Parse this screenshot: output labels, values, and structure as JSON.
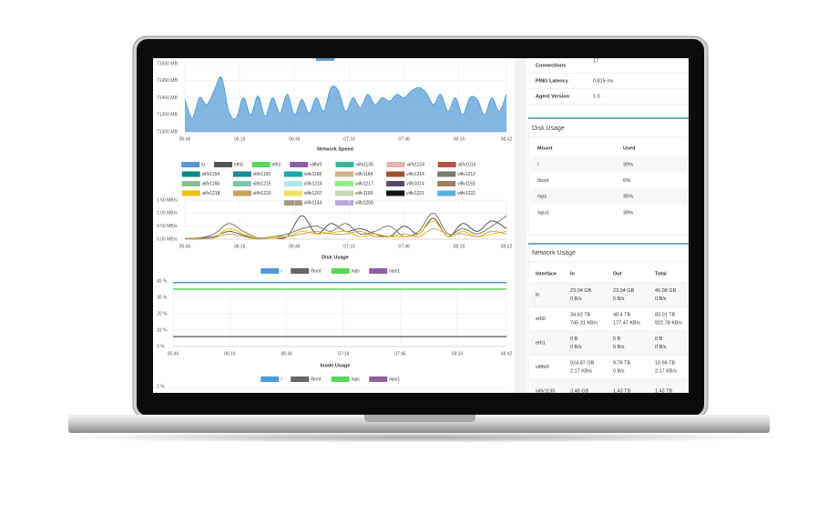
{
  "chart_data": [
    {
      "type": "area",
      "x": [
        346,
        350,
        354,
        358,
        362,
        366,
        370,
        374,
        378,
        382,
        386,
        390,
        394,
        398,
        402,
        406,
        410,
        414,
        418,
        422,
        426,
        430,
        434,
        438,
        442,
        446,
        450,
        454,
        458,
        462,
        466,
        470,
        474,
        478,
        482,
        486,
        490,
        494,
        498,
        502,
        506,
        510,
        514,
        518,
        522
      ],
      "xlim": [
        346,
        522
      ],
      "xticks": [
        {
          "value": 346,
          "label": "05:46"
        },
        {
          "value": 376,
          "label": "06:16"
        },
        {
          "value": 406,
          "label": "06:46"
        },
        {
          "value": 436,
          "label": "07:16"
        },
        {
          "value": 466,
          "label": "07:46"
        },
        {
          "value": 496,
          "label": "08:16"
        },
        {
          "value": 522,
          "label": "08:42"
        }
      ],
      "ylim": [
        71300,
        71500
      ],
      "yticks": [
        {
          "value": 71300,
          "label": "71300 MB"
        },
        {
          "value": 71350,
          "label": "71350 MB"
        },
        {
          "value": 71400,
          "label": "71400 MB"
        },
        {
          "value": 71450,
          "label": "71450 MB"
        },
        {
          "value": 71500,
          "label": "71500 MB"
        }
      ],
      "series": [
        {
          "color": "#5a9fd8",
          "values": [
            71395,
            71340,
            71400,
            71380,
            71420,
            71460,
            71360,
            71340,
            71400,
            71350,
            71405,
            71345,
            71400,
            71355,
            71410,
            71350,
            71395,
            71355,
            71400,
            71360,
            71430,
            71420,
            71360,
            71400,
            71370,
            71410,
            71380,
            71400,
            71390,
            71410,
            71400,
            71420,
            71430,
            71415,
            71380,
            71410,
            71360,
            71400,
            71350,
            71400,
            71395,
            71350,
            71400,
            71360,
            71410
          ]
        }
      ]
    },
    {
      "type": "line",
      "title": "Network Speed",
      "x": [
        346,
        354,
        362,
        370,
        378,
        386,
        394,
        402,
        410,
        418,
        426,
        434,
        442,
        450,
        458,
        466,
        474,
        482,
        490,
        498,
        506,
        514,
        522
      ],
      "xlim": [
        346,
        522
      ],
      "xticks": [
        {
          "value": 346,
          "label": "05:46"
        },
        {
          "value": 376,
          "label": "06:16"
        },
        {
          "value": 406,
          "label": "06:46"
        },
        {
          "value": 436,
          "label": "07:16"
        },
        {
          "value": 466,
          "label": "07:46"
        },
        {
          "value": 496,
          "label": "08:16"
        },
        {
          "value": 522,
          "label": "08:42"
        }
      ],
      "ylim": [
        0,
        1.5
      ],
      "yticks": [
        {
          "value": 0,
          "label": "0.00 MB/s"
        },
        {
          "value": 0.5,
          "label": "0.50 MB/s"
        },
        {
          "value": 1,
          "label": "1.00 MB/s"
        },
        {
          "value": 1.5,
          "label": "1.50 MB/s"
        }
      ],
      "series": [
        {
          "name": "lo",
          "color": "#4e9ad4"
        },
        {
          "name": "eth0",
          "color": "#555555",
          "values": [
            0.02,
            0.05,
            0.1,
            0.3,
            0.15,
            0.02,
            0.05,
            0.1,
            0.9,
            0.2,
            0.6,
            0.3,
            0.4,
            0.2,
            0.1,
            0.5,
            0.2,
            0.8,
            0.1,
            0.6,
            0.3,
            0.7,
            0.4
          ]
        },
        {
          "name": "eth1",
          "color": "#5ad65a"
        },
        {
          "name": "viifbr0",
          "color": "#8e5ea2"
        },
        {
          "name": "viifv1135",
          "color": "#3cb39a"
        },
        {
          "name": "viifv1124",
          "color": "#e8b4b0"
        },
        {
          "name": "viifv1016",
          "color": "#c0504d"
        },
        {
          "name": "viifv1154",
          "color": "#008b8b"
        },
        {
          "name": "viifv1150",
          "color": "#1a8a9a"
        },
        {
          "name": "viifv1165",
          "color": "#1aaaaa"
        },
        {
          "name": "viifv1164",
          "color": "#d2b48c"
        },
        {
          "name": "viifv1214",
          "color": "#a0522d"
        },
        {
          "name": "viifv1212",
          "color": "#7a7a6a",
          "values": [
            0,
            0.05,
            0.2,
            0.6,
            0.3,
            0.05,
            0.1,
            0.2,
            0.4,
            0.5,
            0.3,
            0.6,
            0.2,
            0.3,
            0.5,
            0.1,
            0.3,
            1.0,
            0.2,
            0.4,
            0.2,
            0.5,
            0.9
          ]
        },
        {
          "name": "viifv1168",
          "color": "#8fbc8f"
        },
        {
          "name": "viifv1215",
          "color": "#7fc7b0"
        },
        {
          "name": "viifv1216",
          "color": "#b0e8e8"
        },
        {
          "name": "viifv1217",
          "color": "#90ee90"
        },
        {
          "name": "viifv1014",
          "color": "#5a4a6a"
        },
        {
          "name": "viifv1153",
          "color": "#a08060"
        },
        {
          "name": "viifv1218",
          "color": "#f0c000",
          "values": [
            0,
            0.02,
            0.05,
            0.4,
            0.2,
            0.02,
            0.05,
            0.1,
            0.3,
            0.2,
            0.25,
            0.3,
            0.1,
            0.2,
            0.1,
            0.1,
            0.2,
            0.7,
            0.1,
            0.3,
            0.1,
            0.2,
            0.3
          ]
        },
        {
          "name": "viifv1220",
          "color": "#c8a060",
          "values": [
            0,
            0,
            0.05,
            0.2,
            0.1,
            0,
            0.1,
            0.1,
            0.2,
            0.3,
            0.2,
            0.2,
            0.3,
            0.1,
            0.1,
            0.2,
            0.1,
            0.4,
            0.2,
            0.2,
            0.1,
            0.3,
            0.2
          ]
        },
        {
          "name": "viifv1207",
          "color": "#f0e060"
        },
        {
          "name": "viifv1190",
          "color": "#c8d8b0"
        },
        {
          "name": "viifv1221",
          "color": "#111111"
        },
        {
          "name": "viifv1222",
          "color": "#5ab0e0"
        },
        {
          "name": "viifv1144",
          "color": "#a89880"
        },
        {
          "name": "viifv1209",
          "color": "#b8a8e0"
        }
      ]
    },
    {
      "type": "line",
      "title": "Disk Usage",
      "x": [
        346,
        522
      ],
      "xlim": [
        346,
        522
      ],
      "xticks": [
        {
          "value": 346,
          "label": "05:46"
        },
        {
          "value": 376,
          "label": "06:16"
        },
        {
          "value": 406,
          "label": "06:46"
        },
        {
          "value": 436,
          "label": "07:16"
        },
        {
          "value": 466,
          "label": "07:46"
        },
        {
          "value": 496,
          "label": "08:16"
        },
        {
          "value": 522,
          "label": "08:42"
        }
      ],
      "ylim": [
        0,
        40
      ],
      "yticks": [
        {
          "value": 0,
          "label": "0 %"
        },
        {
          "value": 10,
          "label": "10 %"
        },
        {
          "value": 20,
          "label": "20 %"
        },
        {
          "value": 30,
          "label": "30 %"
        },
        {
          "value": 40,
          "label": "40 %"
        }
      ],
      "series": [
        {
          "name": "/",
          "color": "#4e9ad4",
          "values": [
            39,
            39
          ]
        },
        {
          "name": "/boot",
          "color": "#666666",
          "values": [
            6,
            6
          ]
        },
        {
          "name": "/vps",
          "color": "#5ad65a",
          "values": [
            35,
            35
          ]
        },
        {
          "name": "/vps1",
          "color": "#8e5ea2",
          "values": [
            39,
            39
          ]
        }
      ]
    },
    {
      "type": "line",
      "title": "Inode Usage",
      "yticks": [
        {
          "value": 2,
          "label": "2 %"
        }
      ],
      "series": [
        {
          "name": "/",
          "color": "#4e9ad4"
        },
        {
          "name": "/boot",
          "color": "#666666"
        },
        {
          "name": "/vps",
          "color": "#5ad65a"
        },
        {
          "name": "/vps1",
          "color": "#8e5ea2"
        }
      ]
    }
  ],
  "server_info": {
    "rows": [
      {
        "label": "Connections",
        "value": "17"
      },
      {
        "label": "PING Latency",
        "value": "0.815 ms"
      },
      {
        "label": "Agent Version",
        "value": "1.0"
      }
    ]
  },
  "disk_table": {
    "title": "Disk Usage",
    "columns": [
      "Mount",
      "Used"
    ],
    "rows": [
      [
        "/",
        "39%"
      ],
      [
        "/boot",
        "6%"
      ],
      [
        "/vps",
        "35%"
      ],
      [
        "/vps1",
        "39%"
      ]
    ]
  },
  "network_table": {
    "title": "Network Usage",
    "columns": [
      "Interface",
      "In",
      "Out",
      "Total"
    ],
    "rows": [
      [
        "lo",
        [
          "23.04 GB",
          "0 B/s"
        ],
        [
          "23.04 GB",
          "0 B/s"
        ],
        [
          "46.08 GB",
          "0 B/s"
        ]
      ],
      [
        "eth0",
        [
          "34.62 TB",
          "745.31 KB/s"
        ],
        [
          "48.4 TB",
          "177.47 KB/s"
        ],
        [
          "83.01 TB",
          "922.78 KB/s"
        ]
      ],
      [
        "eth1",
        [
          "0 B",
          "0 B/s"
        ],
        [
          "0 B",
          "0 B/s"
        ],
        [
          "0 B",
          "0 B/s"
        ]
      ],
      [
        "viifbr0",
        [
          "924.87 GB",
          "2.17 KB/s"
        ],
        [
          "9.76 TB",
          "0 B/s"
        ],
        [
          "10.66 TB",
          "2.17 KB/s"
        ]
      ],
      [
        "viifv1135",
        [
          "3.48 GB"
        ],
        [
          "1.43 TB"
        ],
        [
          "1.43 TB"
        ]
      ]
    ]
  }
}
